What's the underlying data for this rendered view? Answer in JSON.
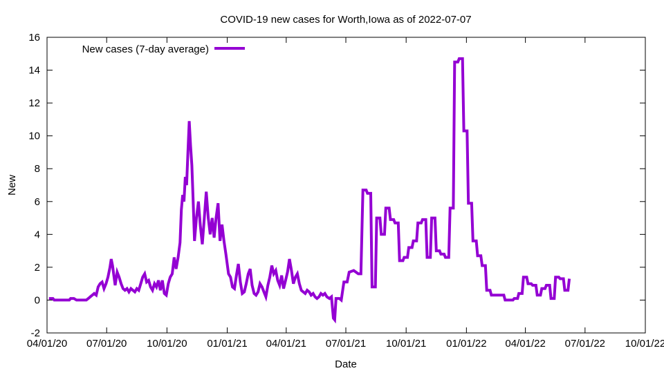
{
  "chart_data": {
    "type": "line",
    "title": "COVID-19 new cases for Worth,Iowa as of 2022-07-07",
    "xlabel": "Date",
    "ylabel": "New",
    "xlim": [
      "2020-04-01",
      "2022-10-01"
    ],
    "ylim": [
      -2,
      16
    ],
    "grid": false,
    "legend_position": "top-left",
    "x_tick_labels": [
      "04/01/20",
      "07/01/20",
      "10/01/20",
      "01/01/21",
      "04/01/21",
      "07/01/21",
      "10/01/21",
      "01/01/22",
      "04/01/22",
      "07/01/22",
      "10/01/22"
    ],
    "y_tick_labels": [
      "-2",
      "0",
      "2",
      "4",
      "6",
      "8",
      "10",
      "12",
      "14",
      "16"
    ],
    "series": [
      {
        "name": "New cases (7-day average)",
        "color": "#9400d3",
        "points": [
          [
            "2020-04-04",
            0.1
          ],
          [
            "2020-04-10",
            0.1
          ],
          [
            "2020-04-12",
            0.0
          ],
          [
            "2020-05-05",
            0.0
          ],
          [
            "2020-05-07",
            0.1
          ],
          [
            "2020-05-12",
            0.1
          ],
          [
            "2020-05-16",
            0.0
          ],
          [
            "2020-05-31",
            0.0
          ],
          [
            "2020-06-03",
            0.1
          ],
          [
            "2020-06-06",
            0.2
          ],
          [
            "2020-06-09",
            0.3
          ],
          [
            "2020-06-12",
            0.4
          ],
          [
            "2020-06-15",
            0.3
          ],
          [
            "2020-06-18",
            0.8
          ],
          [
            "2020-06-21",
            1.0
          ],
          [
            "2020-06-24",
            1.1
          ],
          [
            "2020-06-27",
            0.7
          ],
          [
            "2020-06-30",
            1.0
          ],
          [
            "2020-07-03",
            1.4
          ],
          [
            "2020-07-06",
            2.0
          ],
          [
            "2020-07-08",
            2.5
          ],
          [
            "2020-07-10",
            2.1
          ],
          [
            "2020-07-12",
            1.5
          ],
          [
            "2020-07-14",
            0.9
          ],
          [
            "2020-07-17",
            1.7
          ],
          [
            "2020-07-20",
            1.4
          ],
          [
            "2020-07-23",
            1.0
          ],
          [
            "2020-07-26",
            0.7
          ],
          [
            "2020-07-29",
            0.6
          ],
          [
            "2020-08-01",
            0.7
          ],
          [
            "2020-08-04",
            0.5
          ],
          [
            "2020-08-07",
            0.7
          ],
          [
            "2020-08-10",
            0.6
          ],
          [
            "2020-08-13",
            0.5
          ],
          [
            "2020-08-16",
            0.7
          ],
          [
            "2020-08-19",
            0.6
          ],
          [
            "2020-08-22",
            1.0
          ],
          [
            "2020-08-25",
            1.4
          ],
          [
            "2020-08-28",
            1.6
          ],
          [
            "2020-08-31",
            1.1
          ],
          [
            "2020-09-03",
            1.2
          ],
          [
            "2020-09-06",
            0.8
          ],
          [
            "2020-09-09",
            0.6
          ],
          [
            "2020-09-12",
            1.0
          ],
          [
            "2020-09-15",
            0.8
          ],
          [
            "2020-09-18",
            1.2
          ],
          [
            "2020-09-21",
            0.6
          ],
          [
            "2020-09-24",
            1.2
          ],
          [
            "2020-09-27",
            0.4
          ],
          [
            "2020-09-30",
            0.3
          ],
          [
            "2020-10-03",
            1.0
          ],
          [
            "2020-10-06",
            1.4
          ],
          [
            "2020-10-09",
            1.6
          ],
          [
            "2020-10-12",
            2.6
          ],
          [
            "2020-10-15",
            1.9
          ],
          [
            "2020-10-18",
            2.6
          ],
          [
            "2020-10-21",
            3.5
          ],
          [
            "2020-10-23",
            5.5
          ],
          [
            "2020-10-25",
            6.4
          ],
          [
            "2020-10-27",
            6.0
          ],
          [
            "2020-10-29",
            7.5
          ],
          [
            "2020-10-31",
            7.0
          ],
          [
            "2020-11-02",
            9.0
          ],
          [
            "2020-11-04",
            10.9
          ],
          [
            "2020-11-06",
            9.4
          ],
          [
            "2020-11-08",
            8.2
          ],
          [
            "2020-11-10",
            6.0
          ],
          [
            "2020-11-12",
            3.6
          ],
          [
            "2020-11-15",
            5.0
          ],
          [
            "2020-11-18",
            6.0
          ],
          [
            "2020-11-21",
            4.5
          ],
          [
            "2020-11-24",
            3.4
          ],
          [
            "2020-11-27",
            5.0
          ],
          [
            "2020-11-30",
            6.6
          ],
          [
            "2020-12-03",
            5.0
          ],
          [
            "2020-12-06",
            4.0
          ],
          [
            "2020-12-09",
            5.0
          ],
          [
            "2020-12-12",
            3.8
          ],
          [
            "2020-12-15",
            5.0
          ],
          [
            "2020-12-18",
            5.9
          ],
          [
            "2020-12-21",
            3.6
          ],
          [
            "2020-12-24",
            4.6
          ],
          [
            "2020-12-27",
            3.6
          ],
          [
            "2020-12-30",
            2.8
          ],
          [
            "2021-01-03",
            1.6
          ],
          [
            "2021-01-06",
            1.4
          ],
          [
            "2021-01-09",
            0.8
          ],
          [
            "2021-01-12",
            0.7
          ],
          [
            "2021-01-15",
            1.5
          ],
          [
            "2021-01-18",
            2.2
          ],
          [
            "2021-01-21",
            1.1
          ],
          [
            "2021-01-24",
            0.4
          ],
          [
            "2021-01-27",
            0.5
          ],
          [
            "2021-01-30",
            1.0
          ],
          [
            "2021-02-02",
            1.6
          ],
          [
            "2021-02-05",
            1.9
          ],
          [
            "2021-02-08",
            0.9
          ],
          [
            "2021-02-11",
            0.4
          ],
          [
            "2021-02-14",
            0.3
          ],
          [
            "2021-02-17",
            0.5
          ],
          [
            "2021-02-20",
            1.0
          ],
          [
            "2021-02-23",
            0.8
          ],
          [
            "2021-02-26",
            0.5
          ],
          [
            "2021-03-01",
            0.2
          ],
          [
            "2021-03-04",
            0.9
          ],
          [
            "2021-03-07",
            1.4
          ],
          [
            "2021-03-10",
            2.1
          ],
          [
            "2021-03-13",
            1.6
          ],
          [
            "2021-03-16",
            1.8
          ],
          [
            "2021-03-19",
            1.2
          ],
          [
            "2021-03-22",
            0.9
          ],
          [
            "2021-03-25",
            1.5
          ],
          [
            "2021-03-28",
            0.7
          ],
          [
            "2021-03-31",
            1.2
          ],
          [
            "2021-04-03",
            1.7
          ],
          [
            "2021-04-06",
            2.5
          ],
          [
            "2021-04-09",
            1.8
          ],
          [
            "2021-04-12",
            1.0
          ],
          [
            "2021-04-15",
            1.4
          ],
          [
            "2021-04-18",
            1.6
          ],
          [
            "2021-04-21",
            1.0
          ],
          [
            "2021-04-24",
            0.6
          ],
          [
            "2021-04-27",
            0.5
          ],
          [
            "2021-04-30",
            0.4
          ],
          [
            "2021-05-03",
            0.6
          ],
          [
            "2021-05-06",
            0.5
          ],
          [
            "2021-05-09",
            0.3
          ],
          [
            "2021-05-12",
            0.4
          ],
          [
            "2021-05-15",
            0.2
          ],
          [
            "2021-05-18",
            0.1
          ],
          [
            "2021-05-21",
            0.2
          ],
          [
            "2021-05-24",
            0.4
          ],
          [
            "2021-05-27",
            0.3
          ],
          [
            "2021-05-30",
            0.4
          ],
          [
            "2021-06-02",
            0.2
          ],
          [
            "2021-06-06",
            0.1
          ],
          [
            "2021-06-09",
            0.2
          ],
          [
            "2021-06-12",
            -1.1
          ],
          [
            "2021-06-14",
            -1.2
          ],
          [
            "2021-06-16",
            0.1
          ],
          [
            "2021-06-21",
            0.1
          ],
          [
            "2021-06-24",
            0.0
          ],
          [
            "2021-06-28",
            1.1
          ],
          [
            "2021-07-03",
            1.1
          ],
          [
            "2021-07-06",
            1.7
          ],
          [
            "2021-07-13",
            1.8
          ],
          [
            "2021-07-20",
            1.6
          ],
          [
            "2021-07-24",
            1.6
          ],
          [
            "2021-07-27",
            6.7
          ],
          [
            "2021-08-01",
            6.7
          ],
          [
            "2021-08-03",
            6.5
          ],
          [
            "2021-08-08",
            6.5
          ],
          [
            "2021-08-10",
            0.8
          ],
          [
            "2021-08-15",
            0.8
          ],
          [
            "2021-08-17",
            5.0
          ],
          [
            "2021-08-22",
            5.0
          ],
          [
            "2021-08-24",
            4.0
          ],
          [
            "2021-08-29",
            4.0
          ],
          [
            "2021-08-31",
            5.6
          ],
          [
            "2021-09-05",
            5.6
          ],
          [
            "2021-09-07",
            4.9
          ],
          [
            "2021-09-12",
            4.9
          ],
          [
            "2021-09-14",
            4.7
          ],
          [
            "2021-09-19",
            4.7
          ],
          [
            "2021-09-21",
            2.4
          ],
          [
            "2021-09-26",
            2.4
          ],
          [
            "2021-09-28",
            2.6
          ],
          [
            "2021-10-03",
            2.6
          ],
          [
            "2021-10-05",
            3.2
          ],
          [
            "2021-10-10",
            3.2
          ],
          [
            "2021-10-12",
            3.6
          ],
          [
            "2021-10-17",
            3.6
          ],
          [
            "2021-10-19",
            4.7
          ],
          [
            "2021-10-24",
            4.7
          ],
          [
            "2021-10-26",
            4.9
          ],
          [
            "2021-10-31",
            4.9
          ],
          [
            "2021-11-02",
            2.6
          ],
          [
            "2021-11-07",
            2.6
          ],
          [
            "2021-11-09",
            5.0
          ],
          [
            "2021-11-14",
            5.0
          ],
          [
            "2021-11-16",
            3.0
          ],
          [
            "2021-11-21",
            3.0
          ],
          [
            "2021-11-23",
            2.8
          ],
          [
            "2021-11-28",
            2.8
          ],
          [
            "2021-11-30",
            2.6
          ],
          [
            "2021-12-05",
            2.6
          ],
          [
            "2021-12-07",
            5.6
          ],
          [
            "2021-12-12",
            5.6
          ],
          [
            "2021-12-14",
            14.5
          ],
          [
            "2021-12-19",
            14.5
          ],
          [
            "2021-12-21",
            14.7
          ],
          [
            "2021-12-26",
            14.7
          ],
          [
            "2021-12-28",
            10.3
          ],
          [
            "2022-01-02",
            10.3
          ],
          [
            "2022-01-04",
            5.9
          ],
          [
            "2022-01-09",
            5.9
          ],
          [
            "2022-01-11",
            3.6
          ],
          [
            "2022-01-16",
            3.6
          ],
          [
            "2022-01-18",
            2.7
          ],
          [
            "2022-01-23",
            2.7
          ],
          [
            "2022-01-25",
            2.1
          ],
          [
            "2022-01-30",
            2.1
          ],
          [
            "2022-02-01",
            0.6
          ],
          [
            "2022-02-06",
            0.6
          ],
          [
            "2022-02-08",
            0.3
          ],
          [
            "2022-02-27",
            0.3
          ],
          [
            "2022-03-01",
            0.0
          ],
          [
            "2022-03-13",
            0.0
          ],
          [
            "2022-03-15",
            0.1
          ],
          [
            "2022-03-20",
            0.1
          ],
          [
            "2022-03-22",
            0.4
          ],
          [
            "2022-03-27",
            0.4
          ],
          [
            "2022-03-29",
            1.4
          ],
          [
            "2022-04-03",
            1.4
          ],
          [
            "2022-04-05",
            1.0
          ],
          [
            "2022-04-10",
            1.0
          ],
          [
            "2022-04-12",
            0.9
          ],
          [
            "2022-04-17",
            0.9
          ],
          [
            "2022-04-19",
            0.3
          ],
          [
            "2022-04-24",
            0.3
          ],
          [
            "2022-04-26",
            0.7
          ],
          [
            "2022-05-01",
            0.7
          ],
          [
            "2022-05-03",
            0.9
          ],
          [
            "2022-05-08",
            0.9
          ],
          [
            "2022-05-10",
            0.1
          ],
          [
            "2022-05-15",
            0.1
          ],
          [
            "2022-05-17",
            1.4
          ],
          [
            "2022-05-22",
            1.4
          ],
          [
            "2022-05-24",
            1.3
          ],
          [
            "2022-05-29",
            1.3
          ],
          [
            "2022-05-31",
            0.6
          ],
          [
            "2022-06-05",
            0.6
          ],
          [
            "2022-06-07",
            1.3
          ]
        ]
      }
    ]
  }
}
